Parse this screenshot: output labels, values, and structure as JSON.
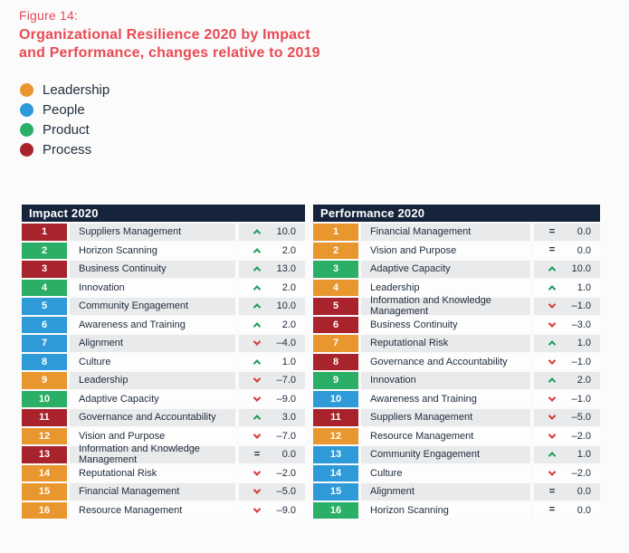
{
  "figure": {
    "label": "Figure 14:",
    "title_line1": "Organizational Resilience 2020 by Impact",
    "title_line2": "and Performance, changes relative to 2019"
  },
  "legend": [
    {
      "key": "leadership",
      "label": "Leadership",
      "color": "#E8962E"
    },
    {
      "key": "people",
      "label": "People",
      "color": "#2E9AD8"
    },
    {
      "key": "product",
      "label": "Product",
      "color": "#2BAE66"
    },
    {
      "key": "process",
      "label": "Process",
      "color": "#A8232C"
    }
  ],
  "colors": {
    "title_red": "#EA4A52",
    "header_navy": "#15233B",
    "text_navy": "#1E2B3A",
    "stripe_gray": "#E9EAEC",
    "trend_up_green": "#1F9D5B",
    "trend_down_red": "#D93A34"
  },
  "chart_data": [
    {
      "type": "table",
      "title": "Impact 2020",
      "columns": [
        "rank",
        "factor",
        "trend",
        "change_vs_2019"
      ],
      "rows": [
        {
          "rank": "1",
          "factor": "Suppliers Management",
          "category": "process",
          "trend": "up",
          "change": 10.0,
          "display": "10.0"
        },
        {
          "rank": "2",
          "factor": "Horizon Scanning",
          "category": "product",
          "trend": "up",
          "change": 2.0,
          "display": "2.0"
        },
        {
          "rank": "3",
          "factor": "Business Continuity",
          "category": "process",
          "trend": "up",
          "change": 13.0,
          "display": "13.0"
        },
        {
          "rank": "4",
          "factor": "Innovation",
          "category": "product",
          "trend": "up",
          "change": 2.0,
          "display": "2.0"
        },
        {
          "rank": "5",
          "factor": "Community Engagement",
          "category": "people",
          "trend": "up",
          "change": 10.0,
          "display": "10.0"
        },
        {
          "rank": "6",
          "factor": "Awareness and Training",
          "category": "people",
          "trend": "up",
          "change": 2.0,
          "display": "2.0"
        },
        {
          "rank": "7",
          "factor": "Alignment",
          "category": "people",
          "trend": "down",
          "change": -4.0,
          "display": "–4.0"
        },
        {
          "rank": "8",
          "factor": "Culture",
          "category": "people",
          "trend": "up",
          "change": 1.0,
          "display": "1.0"
        },
        {
          "rank": "9",
          "factor": "Leadership",
          "category": "leadership",
          "trend": "down",
          "change": -7.0,
          "display": "–7.0"
        },
        {
          "rank": "10",
          "factor": "Adaptive Capacity",
          "category": "product",
          "trend": "down",
          "change": -9.0,
          "display": "–9.0"
        },
        {
          "rank": "11",
          "factor": "Governance and Accountability",
          "category": "process",
          "trend": "up",
          "change": 3.0,
          "display": "3.0"
        },
        {
          "rank": "12",
          "factor": "Vision and Purpose",
          "category": "leadership",
          "trend": "down",
          "change": -7.0,
          "display": "–7.0"
        },
        {
          "rank": "13",
          "factor": "Information and Knowledge Management",
          "category": "process",
          "trend": "equal",
          "change": 0.0,
          "display": "0.0"
        },
        {
          "rank": "14",
          "factor": "Reputational Risk",
          "category": "leadership",
          "trend": "down",
          "change": -2.0,
          "display": "–2.0"
        },
        {
          "rank": "15",
          "factor": "Financial Management",
          "category": "leadership",
          "trend": "down",
          "change": -5.0,
          "display": "–5.0"
        },
        {
          "rank": "16",
          "factor": "Resource Management",
          "category": "leadership",
          "trend": "down",
          "change": -9.0,
          "display": "–9.0"
        }
      ]
    },
    {
      "type": "table",
      "title": "Performance 2020",
      "columns": [
        "rank",
        "factor",
        "trend",
        "change_vs_2019"
      ],
      "rows": [
        {
          "rank": "1",
          "factor": "Financial Management",
          "category": "leadership",
          "trend": "equal",
          "change": 0.0,
          "display": "0.0"
        },
        {
          "rank": "2",
          "factor": "Vision and Purpose",
          "category": "leadership",
          "trend": "equal",
          "change": 0.0,
          "display": "0.0"
        },
        {
          "rank": "3",
          "factor": "Adaptive Capacity",
          "category": "product",
          "trend": "up",
          "change": 10.0,
          "display": "10.0"
        },
        {
          "rank": "4",
          "factor": "Leadership",
          "category": "leadership",
          "trend": "up",
          "change": 1.0,
          "display": "1.0"
        },
        {
          "rank": "5",
          "factor": "Information and Knowledge Management",
          "category": "process",
          "trend": "down",
          "change": -1.0,
          "display": "–1.0"
        },
        {
          "rank": "6",
          "factor": "Business Continuity",
          "category": "process",
          "trend": "down",
          "change": -3.0,
          "display": "–3.0"
        },
        {
          "rank": "7",
          "factor": "Reputational Risk",
          "category": "leadership",
          "trend": "up",
          "change": 1.0,
          "display": "1.0"
        },
        {
          "rank": "8",
          "factor": "Governance and Accountability",
          "category": "process",
          "trend": "down",
          "change": -1.0,
          "display": "–1.0"
        },
        {
          "rank": "9",
          "factor": "Innovation",
          "category": "product",
          "trend": "up",
          "change": 2.0,
          "display": "2.0"
        },
        {
          "rank": "10",
          "factor": "Awareness and Training",
          "category": "people",
          "trend": "down",
          "change": -1.0,
          "display": "–1.0"
        },
        {
          "rank": "11",
          "factor": "Suppliers Management",
          "category": "process",
          "trend": "down",
          "change": -5.0,
          "display": "–5.0"
        },
        {
          "rank": "12",
          "factor": "Resource Management",
          "category": "leadership",
          "trend": "down",
          "change": -2.0,
          "display": "–2.0"
        },
        {
          "rank": "13",
          "factor": "Community Engagement",
          "category": "people",
          "trend": "up",
          "change": 1.0,
          "display": "1.0"
        },
        {
          "rank": "14",
          "factor": "Culture",
          "category": "people",
          "trend": "down",
          "change": -2.0,
          "display": "–2.0"
        },
        {
          "rank": "15",
          "factor": "Alignment",
          "category": "people",
          "trend": "equal",
          "change": 0.0,
          "display": "0.0"
        },
        {
          "rank": "16",
          "factor": "Horizon Scanning",
          "category": "product",
          "trend": "equal",
          "change": 0.0,
          "display": "0.0"
        }
      ]
    }
  ]
}
